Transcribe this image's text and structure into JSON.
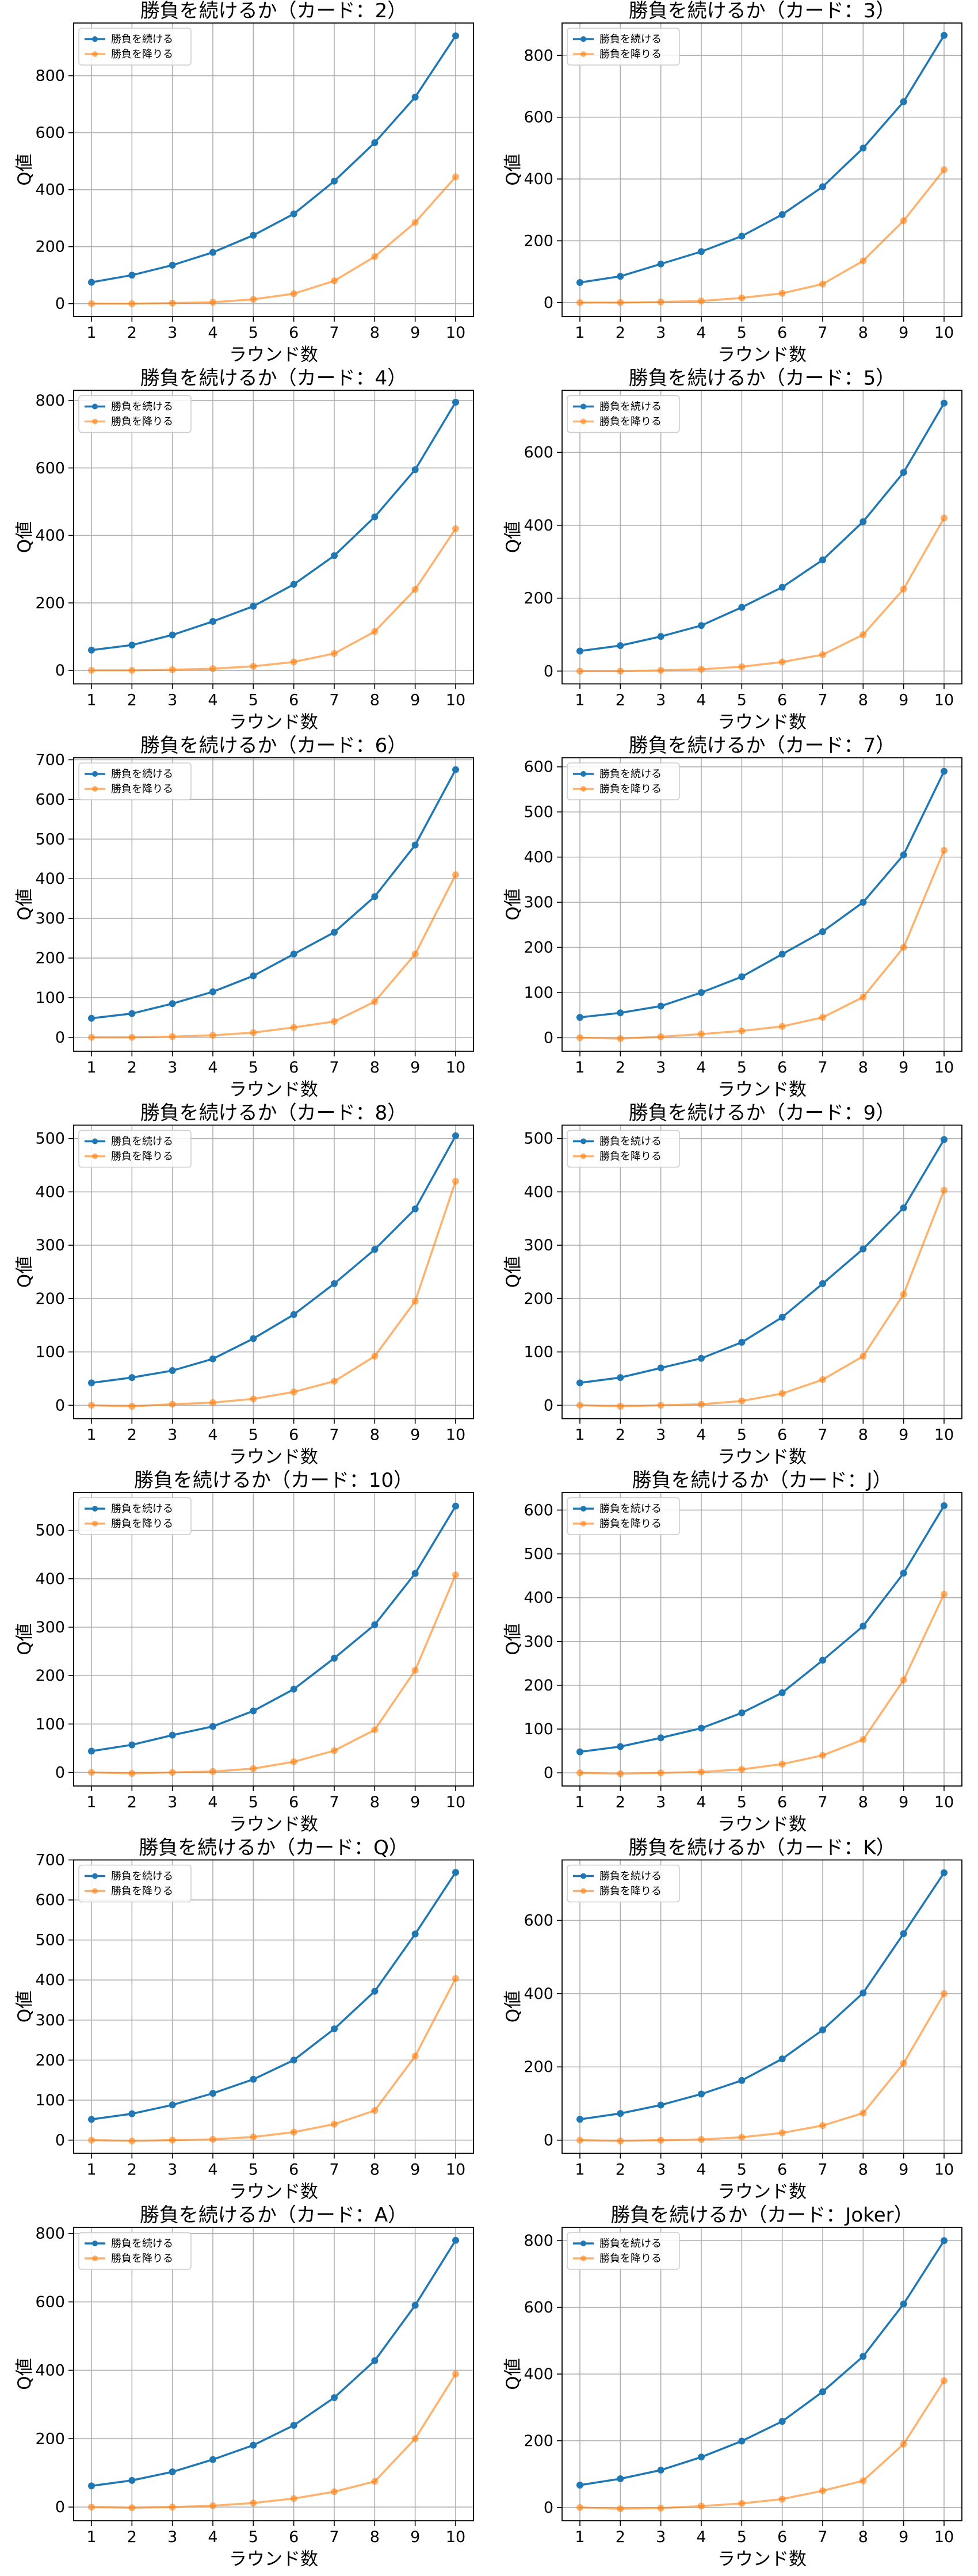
{
  "chart_data": [
    {
      "type": "line",
      "title": "勝負を続けるか（カード：2）",
      "xlabel": "ラウンド数",
      "ylabel": "Q値",
      "x": [
        1,
        2,
        3,
        4,
        5,
        6,
        7,
        8,
        9,
        10
      ],
      "ylim": [
        -45,
        985
      ],
      "yticks": [
        0,
        200,
        400,
        600,
        800
      ],
      "grid": true,
      "legend": "top-left",
      "series": [
        {
          "name": "勝負を続ける",
          "color": "#1f77b4",
          "values": [
            75,
            100,
            135,
            180,
            240,
            315,
            430,
            565,
            725,
            940
          ]
        },
        {
          "name": "勝負を降りる",
          "color": "#ff7f0e",
          "values": [
            0,
            0,
            2,
            5,
            15,
            35,
            80,
            165,
            285,
            445
          ]
        }
      ]
    },
    {
      "type": "line",
      "title": "勝負を続けるか（カード：3）",
      "xlabel": "ラウンド数",
      "ylabel": "Q値",
      "x": [
        1,
        2,
        3,
        4,
        5,
        6,
        7,
        8,
        9,
        10
      ],
      "ylim": [
        -45,
        905
      ],
      "yticks": [
        0,
        200,
        400,
        600,
        800
      ],
      "grid": true,
      "legend": "top-left",
      "series": [
        {
          "name": "勝負を続ける",
          "color": "#1f77b4",
          "values": [
            65,
            85,
            125,
            165,
            215,
            285,
            375,
            500,
            650,
            865
          ]
        },
        {
          "name": "勝負を降りる",
          "color": "#ff7f0e",
          "values": [
            0,
            0,
            2,
            5,
            15,
            30,
            60,
            135,
            265,
            430
          ]
        }
      ]
    },
    {
      "type": "line",
      "title": "勝負を続けるか（カード：4）",
      "xlabel": "ラウンド数",
      "ylabel": "Q値",
      "x": [
        1,
        2,
        3,
        4,
        5,
        6,
        7,
        8,
        9,
        10
      ],
      "ylim": [
        -40,
        830
      ],
      "yticks": [
        0,
        200,
        400,
        600,
        800
      ],
      "grid": true,
      "legend": "top-left",
      "series": [
        {
          "name": "勝負を続ける",
          "color": "#1f77b4",
          "values": [
            60,
            75,
            105,
            145,
            190,
            255,
            340,
            455,
            595,
            795
          ]
        },
        {
          "name": "勝負を降りる",
          "color": "#ff7f0e",
          "values": [
            0,
            0,
            2,
            5,
            12,
            25,
            50,
            115,
            240,
            420
          ]
        }
      ]
    },
    {
      "type": "line",
      "title": "勝負を続けるか（カード：5）",
      "xlabel": "ラウンド数",
      "ylabel": "Q値",
      "x": [
        1,
        2,
        3,
        4,
        5,
        6,
        7,
        8,
        9,
        10
      ],
      "ylim": [
        -35,
        770
      ],
      "yticks": [
        0,
        200,
        400,
        600
      ],
      "grid": true,
      "legend": "top-left",
      "series": [
        {
          "name": "勝負を続ける",
          "color": "#1f77b4",
          "values": [
            55,
            70,
            95,
            125,
            175,
            230,
            305,
            410,
            545,
            735
          ]
        },
        {
          "name": "勝負を降りる",
          "color": "#ff7f0e",
          "values": [
            0,
            0,
            2,
            5,
            12,
            25,
            45,
            100,
            225,
            420
          ]
        }
      ]
    },
    {
      "type": "line",
      "title": "勝負を続けるか（カード：6）",
      "xlabel": "ラウンド数",
      "ylabel": "Q値",
      "x": [
        1,
        2,
        3,
        4,
        5,
        6,
        7,
        8,
        9,
        10
      ],
      "ylim": [
        -35,
        705
      ],
      "yticks": [
        0,
        100,
        200,
        300,
        400,
        500,
        600,
        700
      ],
      "grid": true,
      "legend": "top-left",
      "series": [
        {
          "name": "勝負を続ける",
          "color": "#1f77b4",
          "values": [
            48,
            60,
            85,
            115,
            155,
            210,
            265,
            355,
            485,
            675
          ]
        },
        {
          "name": "勝負を降りる",
          "color": "#ff7f0e",
          "values": [
            0,
            0,
            2,
            5,
            12,
            25,
            40,
            90,
            210,
            410
          ]
        }
      ]
    },
    {
      "type": "line",
      "title": "勝負を続けるか（カード：7）",
      "xlabel": "ラウンド数",
      "ylabel": "Q値",
      "x": [
        1,
        2,
        3,
        4,
        5,
        6,
        7,
        8,
        9,
        10
      ],
      "ylim": [
        -30,
        620
      ],
      "yticks": [
        0,
        100,
        200,
        300,
        400,
        500,
        600
      ],
      "grid": true,
      "legend": "top-left",
      "series": [
        {
          "name": "勝負を続ける",
          "color": "#1f77b4",
          "values": [
            45,
            55,
            70,
            100,
            135,
            185,
            235,
            300,
            405,
            590
          ]
        },
        {
          "name": "勝負を降りる",
          "color": "#ff7f0e",
          "values": [
            0,
            -2,
            2,
            8,
            15,
            25,
            45,
            90,
            200,
            415
          ]
        }
      ]
    },
    {
      "type": "line",
      "title": "勝負を続けるか（カード：8）",
      "xlabel": "ラウンド数",
      "ylabel": "Q値",
      "x": [
        1,
        2,
        3,
        4,
        5,
        6,
        7,
        8,
        9,
        10
      ],
      "ylim": [
        -25,
        525
      ],
      "yticks": [
        0,
        100,
        200,
        300,
        400,
        500
      ],
      "grid": true,
      "legend": "top-left",
      "series": [
        {
          "name": "勝負を続ける",
          "color": "#1f77b4",
          "values": [
            42,
            52,
            65,
            87,
            125,
            170,
            228,
            292,
            368,
            505
          ]
        },
        {
          "name": "勝負を降りる",
          "color": "#ff7f0e",
          "values": [
            0,
            -2,
            2,
            5,
            12,
            25,
            45,
            92,
            195,
            420
          ]
        }
      ]
    },
    {
      "type": "line",
      "title": "勝負を続けるか（カード：9）",
      "xlabel": "ラウンド数",
      "ylabel": "Q値",
      "x": [
        1,
        2,
        3,
        4,
        5,
        6,
        7,
        8,
        9,
        10
      ],
      "ylim": [
        -25,
        525
      ],
      "yticks": [
        0,
        100,
        200,
        300,
        400,
        500
      ],
      "grid": true,
      "legend": "top-left",
      "series": [
        {
          "name": "勝負を続ける",
          "color": "#1f77b4",
          "values": [
            42,
            52,
            70,
            88,
            118,
            165,
            228,
            293,
            370,
            498
          ]
        },
        {
          "name": "勝負を降りる",
          "color": "#ff7f0e",
          "values": [
            0,
            -2,
            0,
            2,
            8,
            22,
            48,
            92,
            208,
            403
          ]
        }
      ]
    },
    {
      "type": "line",
      "title": "勝負を続けるか（カード：10）",
      "xlabel": "ラウンド数",
      "ylabel": "Q値",
      "x": [
        1,
        2,
        3,
        4,
        5,
        6,
        7,
        8,
        9,
        10
      ],
      "ylim": [
        -28,
        578
      ],
      "yticks": [
        0,
        100,
        200,
        300,
        400,
        500
      ],
      "grid": true,
      "legend": "top-left",
      "series": [
        {
          "name": "勝負を続ける",
          "color": "#1f77b4",
          "values": [
            44,
            57,
            77,
            95,
            127,
            172,
            236,
            305,
            411,
            550
          ]
        },
        {
          "name": "勝負を降りる",
          "color": "#ff7f0e",
          "values": [
            0,
            -2,
            0,
            2,
            8,
            22,
            45,
            88,
            211,
            408
          ]
        }
      ]
    },
    {
      "type": "line",
      "title": "勝負を続けるか（カード：J）",
      "xlabel": "ラウンド数",
      "ylabel": "Q値",
      "x": [
        1,
        2,
        3,
        4,
        5,
        6,
        7,
        8,
        9,
        10
      ],
      "ylim": [
        -30,
        640
      ],
      "yticks": [
        0,
        100,
        200,
        300,
        400,
        500,
        600
      ],
      "grid": true,
      "legend": "top-left",
      "series": [
        {
          "name": "勝負を続ける",
          "color": "#1f77b4",
          "values": [
            48,
            60,
            80,
            102,
            137,
            183,
            257,
            335,
            456,
            610
          ]
        },
        {
          "name": "勝負を降りる",
          "color": "#ff7f0e",
          "values": [
            0,
            -2,
            0,
            2,
            8,
            20,
            40,
            76,
            212,
            408
          ]
        }
      ]
    },
    {
      "type": "line",
      "title": "勝負を続けるか（カード：Q）",
      "xlabel": "ラウンド数",
      "ylabel": "Q値",
      "x": [
        1,
        2,
        3,
        4,
        5,
        6,
        7,
        8,
        9,
        10
      ],
      "ylim": [
        -33,
        700
      ],
      "yticks": [
        0,
        100,
        200,
        300,
        400,
        500,
        600,
        700
      ],
      "grid": true,
      "legend": "top-left",
      "series": [
        {
          "name": "勝負を続ける",
          "color": "#1f77b4",
          "values": [
            52,
            66,
            88,
            117,
            152,
            200,
            278,
            372,
            515,
            669
          ]
        },
        {
          "name": "勝負を降りる",
          "color": "#ff7f0e",
          "values": [
            0,
            -2,
            0,
            2,
            8,
            20,
            40,
            74,
            210,
            404
          ]
        }
      ]
    },
    {
      "type": "line",
      "title": "勝負を続けるか（カード：K）",
      "xlabel": "ラウンド数",
      "ylabel": "Q値",
      "x": [
        1,
        2,
        3,
        4,
        5,
        6,
        7,
        8,
        9,
        10
      ],
      "ylim": [
        -36,
        765
      ],
      "yticks": [
        0,
        200,
        400,
        600
      ],
      "grid": true,
      "legend": "top-left",
      "series": [
        {
          "name": "勝負を続ける",
          "color": "#1f77b4",
          "values": [
            57,
            73,
            96,
            126,
            163,
            222,
            301,
            402,
            564,
            730
          ]
        },
        {
          "name": "勝負を降りる",
          "color": "#ff7f0e",
          "values": [
            0,
            -2,
            0,
            2,
            8,
            20,
            40,
            74,
            210,
            400
          ]
        }
      ]
    },
    {
      "type": "line",
      "title": "勝負を続けるか（カード：A）",
      "xlabel": "ラウンド数",
      "ylabel": "Q値",
      "x": [
        1,
        2,
        3,
        4,
        5,
        6,
        7,
        8,
        9,
        10
      ],
      "ylim": [
        -40,
        818
      ],
      "yticks": [
        0,
        200,
        400,
        600,
        800
      ],
      "grid": true,
      "legend": "top-left",
      "series": [
        {
          "name": "勝負を続ける",
          "color": "#1f77b4",
          "values": [
            62,
            78,
            103,
            139,
            181,
            239,
            320,
            428,
            590,
            780
          ]
        },
        {
          "name": "勝負を降りる",
          "color": "#ff7f0e",
          "values": [
            0,
            -2,
            0,
            4,
            12,
            25,
            45,
            75,
            200,
            389
          ]
        }
      ]
    },
    {
      "type": "line",
      "title": "勝負を続けるか（カード：Joker）",
      "xlabel": "ラウンド数",
      "ylabel": "Q値",
      "x": [
        1,
        2,
        3,
        4,
        5,
        6,
        7,
        8,
        9,
        10
      ],
      "ylim": [
        -40,
        840
      ],
      "yticks": [
        0,
        200,
        400,
        600,
        800
      ],
      "grid": true,
      "legend": "top-left",
      "series": [
        {
          "name": "勝負を続ける",
          "color": "#1f77b4",
          "values": [
            67,
            86,
            112,
            151,
            199,
            258,
            347,
            453,
            610,
            800
          ]
        },
        {
          "name": "勝負を降りる",
          "color": "#ff7f0e",
          "values": [
            0,
            -4,
            -2,
            4,
            12,
            25,
            50,
            80,
            190,
            380
          ]
        }
      ]
    }
  ]
}
